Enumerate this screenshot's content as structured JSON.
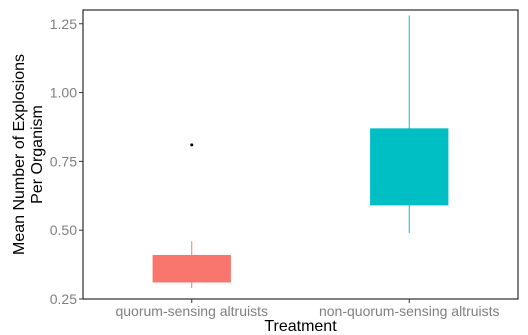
{
  "chart_data": {
    "type": "box",
    "xlabel": "Treatment",
    "ylabel_lines": [
      "Mean Number of Explosions",
      "Per Organism"
    ],
    "ylim": [
      0.25,
      1.3
    ],
    "yticks": [
      0.25,
      0.5,
      0.75,
      1.0,
      1.25
    ],
    "ytick_labels": [
      "0.25",
      "0.50",
      "0.75",
      "1.00",
      "1.25"
    ],
    "grid": false,
    "categories": [
      "quorum-sensing altruists",
      "non-quorum-sensing altruists"
    ],
    "boxes": [
      {
        "category": "quorum-sensing altruists",
        "whisker_low": 0.29,
        "q1": 0.31,
        "median": 0.32,
        "q3": 0.41,
        "whisker_high": 0.46,
        "outliers": [
          0.81
        ],
        "color": "#F8766D"
      },
      {
        "category": "non-quorum-sensing altruists",
        "whisker_low": 0.49,
        "q1": 0.59,
        "median": 0.6,
        "q3": 0.87,
        "whisker_high": 1.28,
        "outliers": [],
        "color": "#00BFC4"
      }
    ]
  }
}
